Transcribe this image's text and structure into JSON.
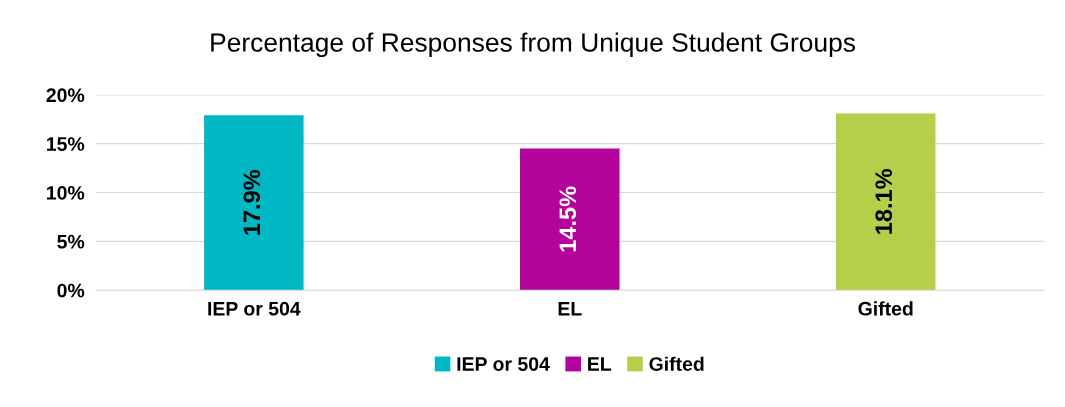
{
  "chart_data": {
    "type": "bar",
    "title": "Percentage of Responses from Unique Student Groups",
    "categories": [
      "IEP or 504",
      "EL",
      "Gifted"
    ],
    "series": [
      {
        "name": "IEP or 504",
        "color": "#00b8c4",
        "values": [
          17.9,
          null,
          null
        ],
        "value_labels": [
          "17.9%",
          null,
          null
        ]
      },
      {
        "name": "EL",
        "color": "#b5049c",
        "values": [
          null,
          14.5,
          null
        ],
        "value_labels": [
          null,
          "14.5%",
          null
        ]
      },
      {
        "name": "Gifted",
        "color": "#b5cf4a",
        "values": [
          null,
          null,
          18.1
        ],
        "value_labels": [
          null,
          null,
          "18.1%"
        ]
      }
    ],
    "ylim": [
      0,
      20
    ],
    "yticks": [
      {
        "value": 0,
        "label": "0%"
      },
      {
        "value": 5,
        "label": "5%"
      },
      {
        "value": 10,
        "label": "10%"
      },
      {
        "value": 15,
        "label": "15%"
      },
      {
        "value": 20,
        "label": "20%"
      }
    ],
    "grid": "y",
    "legend": "bottom"
  }
}
